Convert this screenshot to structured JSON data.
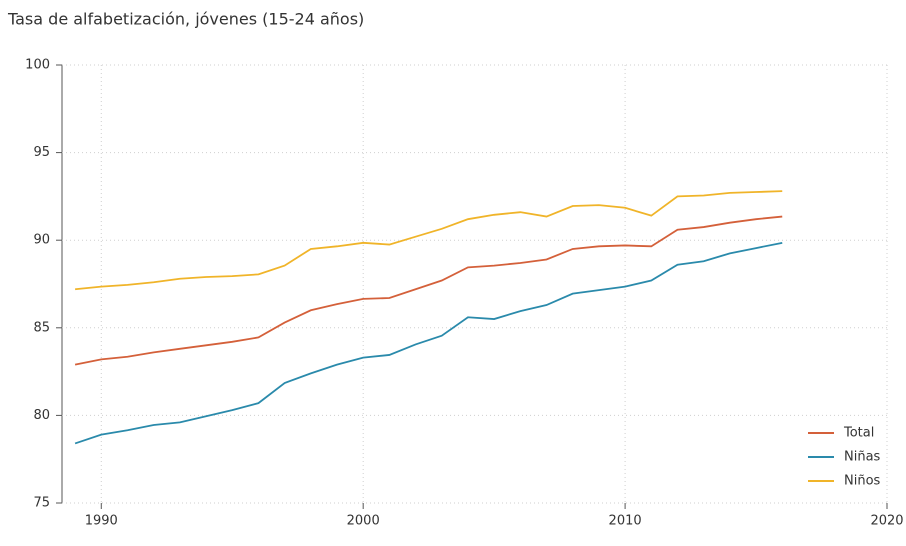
{
  "chart_data": {
    "type": "line",
    "title": "Tasa de alfabetización, jóvenes (15-24 años)",
    "x": [
      1989,
      1990,
      1991,
      1992,
      1993,
      1994,
      1995,
      1996,
      1997,
      1998,
      1999,
      2000,
      2001,
      2002,
      2003,
      2004,
      2005,
      2006,
      2007,
      2008,
      2009,
      2010,
      2011,
      2012,
      2013,
      2014,
      2015,
      2016
    ],
    "series": [
      {
        "name": "Total",
        "color": "#d4603a",
        "values": [
          82.9,
          83.2,
          83.35,
          83.6,
          83.8,
          84.0,
          84.2,
          84.45,
          85.3,
          86.0,
          86.35,
          86.65,
          86.7,
          87.2,
          87.7,
          88.45,
          88.55,
          88.7,
          88.9,
          89.5,
          89.65,
          89.7,
          89.65,
          90.6,
          90.75,
          91.0,
          91.2,
          91.35
        ]
      },
      {
        "name": "Niñas",
        "color": "#2a8aab",
        "values": [
          78.4,
          78.9,
          79.15,
          79.45,
          79.6,
          79.95,
          80.3,
          80.7,
          81.85,
          82.4,
          82.9,
          83.3,
          83.45,
          84.05,
          84.55,
          85.6,
          85.5,
          85.95,
          86.3,
          86.95,
          87.15,
          87.35,
          87.7,
          88.6,
          88.8,
          89.25,
          89.55,
          89.85
        ]
      },
      {
        "name": "Niños",
        "color": "#f0b429",
        "values": [
          87.2,
          87.35,
          87.45,
          87.6,
          87.8,
          87.9,
          87.95,
          88.05,
          88.55,
          89.5,
          89.65,
          89.85,
          89.75,
          90.2,
          90.65,
          91.2,
          91.45,
          91.6,
          91.35,
          91.95,
          92.0,
          91.85,
          91.4,
          92.5,
          92.55,
          92.7,
          92.75,
          92.8
        ]
      }
    ],
    "xlim": [
      1988.5,
      2020
    ],
    "xticks": [
      1990,
      2000,
      2010,
      2020
    ],
    "ylim": [
      75,
      100
    ],
    "yticks": [
      75,
      80,
      85,
      90,
      95,
      100
    ],
    "grid": true,
    "legend": "bottom-right"
  }
}
